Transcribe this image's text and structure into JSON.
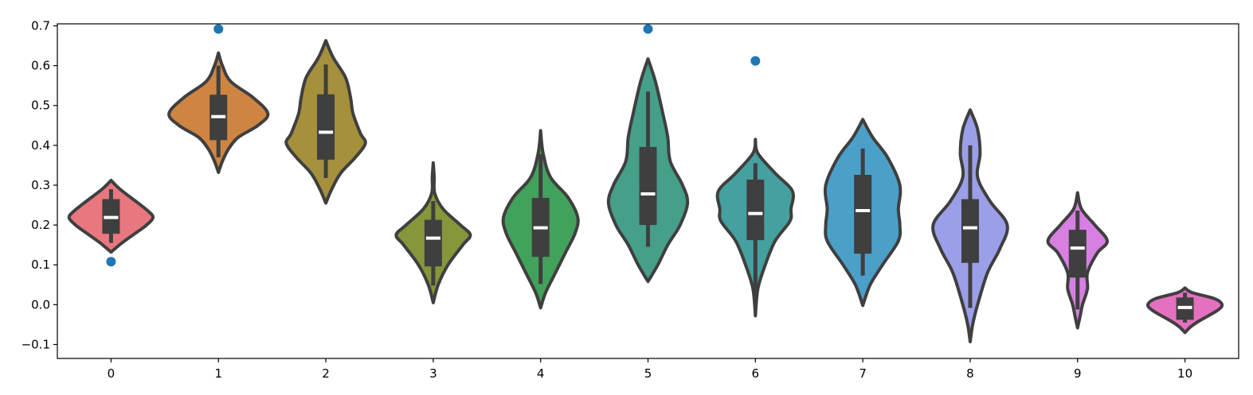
{
  "chart_data": {
    "type": "violin",
    "title": "",
    "xlabel": "",
    "ylabel": "",
    "categories": [
      "0",
      "1",
      "2",
      "3",
      "4",
      "5",
      "6",
      "7",
      "8",
      "9",
      "10"
    ],
    "ylim": [
      -0.135,
      0.705
    ],
    "yticks": [
      -0.1,
      0.0,
      0.1,
      0.2,
      0.3,
      0.4,
      0.5,
      0.6,
      0.7
    ],
    "ytick_labels": [
      "−0.1",
      "0.0",
      "0.1",
      "0.2",
      "0.3",
      "0.4",
      "0.5",
      "0.6",
      "0.7"
    ],
    "grid": false,
    "legend": "none",
    "violin_outline_color": "#3f3f3f",
    "box_color": "#3f3f3f",
    "median_color": "#ffffff",
    "outlier_color": "#1f77b4",
    "series": [
      {
        "category": "0",
        "color": "#e8777f",
        "min": 0.155,
        "q1": 0.178,
        "median": 0.219,
        "q3": 0.265,
        "max": 0.29,
        "outliers": [
          0.108
        ],
        "shape": [
          [
            0.312,
            0.0
          ],
          [
            0.29,
            0.18
          ],
          [
            0.255,
            0.55
          ],
          [
            0.235,
            0.75
          ],
          [
            0.219,
            0.85
          ],
          [
            0.2,
            0.72
          ],
          [
            0.18,
            0.5
          ],
          [
            0.155,
            0.22
          ],
          [
            0.132,
            0.0
          ]
        ]
      },
      {
        "category": "1",
        "color": "#cf8542",
        "min": 0.37,
        "q1": 0.413,
        "median": 0.472,
        "q3": 0.527,
        "max": 0.6,
        "outliers": [
          0.692
        ],
        "shape": [
          [
            0.632,
            0.0
          ],
          [
            0.6,
            0.08
          ],
          [
            0.56,
            0.25
          ],
          [
            0.52,
            0.7
          ],
          [
            0.48,
            1.0
          ],
          [
            0.45,
            0.8
          ],
          [
            0.42,
            0.4
          ],
          [
            0.39,
            0.2
          ],
          [
            0.36,
            0.08
          ],
          [
            0.332,
            0.0
          ]
        ]
      },
      {
        "category": "2",
        "color": "#a5903c",
        "min": 0.318,
        "q1": 0.364,
        "median": 0.433,
        "q3": 0.528,
        "max": 0.603,
        "outliers": [],
        "shape": [
          [
            0.663,
            0.0
          ],
          [
            0.62,
            0.15
          ],
          [
            0.57,
            0.4
          ],
          [
            0.52,
            0.5
          ],
          [
            0.48,
            0.55
          ],
          [
            0.43,
            0.7
          ],
          [
            0.405,
            0.8
          ],
          [
            0.37,
            0.6
          ],
          [
            0.33,
            0.3
          ],
          [
            0.29,
            0.12
          ],
          [
            0.255,
            0.0
          ]
        ]
      },
      {
        "category": "3",
        "color": "#84973b",
        "min": 0.048,
        "q1": 0.096,
        "median": 0.167,
        "q3": 0.213,
        "max": 0.26,
        "outliers": [],
        "shape": [
          [
            0.356,
            0.0
          ],
          [
            0.32,
            0.02
          ],
          [
            0.28,
            0.03
          ],
          [
            0.24,
            0.2
          ],
          [
            0.2,
            0.55
          ],
          [
            0.175,
            0.75
          ],
          [
            0.15,
            0.6
          ],
          [
            0.1,
            0.3
          ],
          [
            0.05,
            0.1
          ],
          [
            0.005,
            0.0
          ]
        ]
      },
      {
        "category": "4",
        "color": "#42a15b",
        "min": 0.052,
        "q1": 0.12,
        "median": 0.193,
        "q3": 0.268,
        "max": 0.378,
        "outliers": [],
        "shape": [
          [
            0.437,
            0.0
          ],
          [
            0.38,
            0.05
          ],
          [
            0.32,
            0.2
          ],
          [
            0.27,
            0.55
          ],
          [
            0.22,
            0.75
          ],
          [
            0.18,
            0.7
          ],
          [
            0.13,
            0.5
          ],
          [
            0.08,
            0.3
          ],
          [
            0.03,
            0.1
          ],
          [
            -0.008,
            0.0
          ]
        ]
      },
      {
        "category": "5",
        "color": "#46a089",
        "min": 0.145,
        "q1": 0.2,
        "median": 0.278,
        "q3": 0.396,
        "max": 0.535,
        "outliers": [
          0.692
        ],
        "shape": [
          [
            0.617,
            0.0
          ],
          [
            0.56,
            0.15
          ],
          [
            0.48,
            0.3
          ],
          [
            0.42,
            0.4
          ],
          [
            0.36,
            0.45
          ],
          [
            0.3,
            0.7
          ],
          [
            0.255,
            0.8
          ],
          [
            0.2,
            0.65
          ],
          [
            0.15,
            0.4
          ],
          [
            0.1,
            0.2
          ],
          [
            0.058,
            0.0
          ]
        ]
      },
      {
        "category": "6",
        "color": "#44a1a0",
        "min": 0.025,
        "q1": 0.162,
        "median": 0.229,
        "q3": 0.314,
        "max": 0.355,
        "outliers": [
          0.612
        ],
        "shape": [
          [
            0.415,
            0.0
          ],
          [
            0.38,
            0.05
          ],
          [
            0.33,
            0.4
          ],
          [
            0.285,
            0.75
          ],
          [
            0.24,
            0.72
          ],
          [
            0.21,
            0.7
          ],
          [
            0.16,
            0.4
          ],
          [
            0.1,
            0.2
          ],
          [
            0.04,
            0.05
          ],
          [
            -0.028,
            0.0
          ]
        ]
      },
      {
        "category": "7",
        "color": "#4ba0c9",
        "min": 0.073,
        "q1": 0.128,
        "median": 0.236,
        "q3": 0.326,
        "max": 0.392,
        "outliers": [],
        "shape": [
          [
            0.465,
            0.0
          ],
          [
            0.42,
            0.2
          ],
          [
            0.37,
            0.5
          ],
          [
            0.3,
            0.75
          ],
          [
            0.24,
            0.72
          ],
          [
            0.2,
            0.75
          ],
          [
            0.16,
            0.72
          ],
          [
            0.1,
            0.4
          ],
          [
            0.05,
            0.15
          ],
          [
            -0.002,
            0.0
          ]
        ]
      },
      {
        "category": "8",
        "color": "#9b9fe8",
        "min": -0.008,
        "q1": 0.105,
        "median": 0.193,
        "q3": 0.265,
        "max": 0.4,
        "outliers": [],
        "shape": [
          [
            0.489,
            0.0
          ],
          [
            0.44,
            0.15
          ],
          [
            0.38,
            0.2
          ],
          [
            0.32,
            0.15
          ],
          [
            0.26,
            0.4
          ],
          [
            0.2,
            0.75
          ],
          [
            0.14,
            0.6
          ],
          [
            0.08,
            0.35
          ],
          [
            0.0,
            0.15
          ],
          [
            -0.05,
            0.05
          ],
          [
            -0.093,
            0.0
          ]
        ]
      },
      {
        "category": "9",
        "color": "#d77fe2",
        "min": -0.012,
        "q1": 0.068,
        "median": 0.142,
        "q3": 0.188,
        "max": 0.236,
        "outliers": [],
        "shape": [
          [
            0.281,
            0.0
          ],
          [
            0.24,
            0.08
          ],
          [
            0.2,
            0.35
          ],
          [
            0.16,
            0.6
          ],
          [
            0.13,
            0.4
          ],
          [
            0.08,
            0.2
          ],
          [
            0.04,
            0.2
          ],
          [
            0.0,
            0.1
          ],
          [
            -0.03,
            0.05
          ],
          [
            -0.058,
            0.0
          ]
        ]
      },
      {
        "category": "10",
        "color": "#e470c0",
        "min": -0.045,
        "q1": -0.038,
        "median": -0.007,
        "q3": 0.018,
        "max": 0.03,
        "outliers": [],
        "shape": [
          [
            0.042,
            0.0
          ],
          [
            0.03,
            0.15
          ],
          [
            0.015,
            0.6
          ],
          [
            0.0,
            0.75
          ],
          [
            -0.015,
            0.65
          ],
          [
            -0.04,
            0.3
          ],
          [
            -0.055,
            0.12
          ],
          [
            -0.07,
            0.0
          ]
        ]
      }
    ]
  }
}
